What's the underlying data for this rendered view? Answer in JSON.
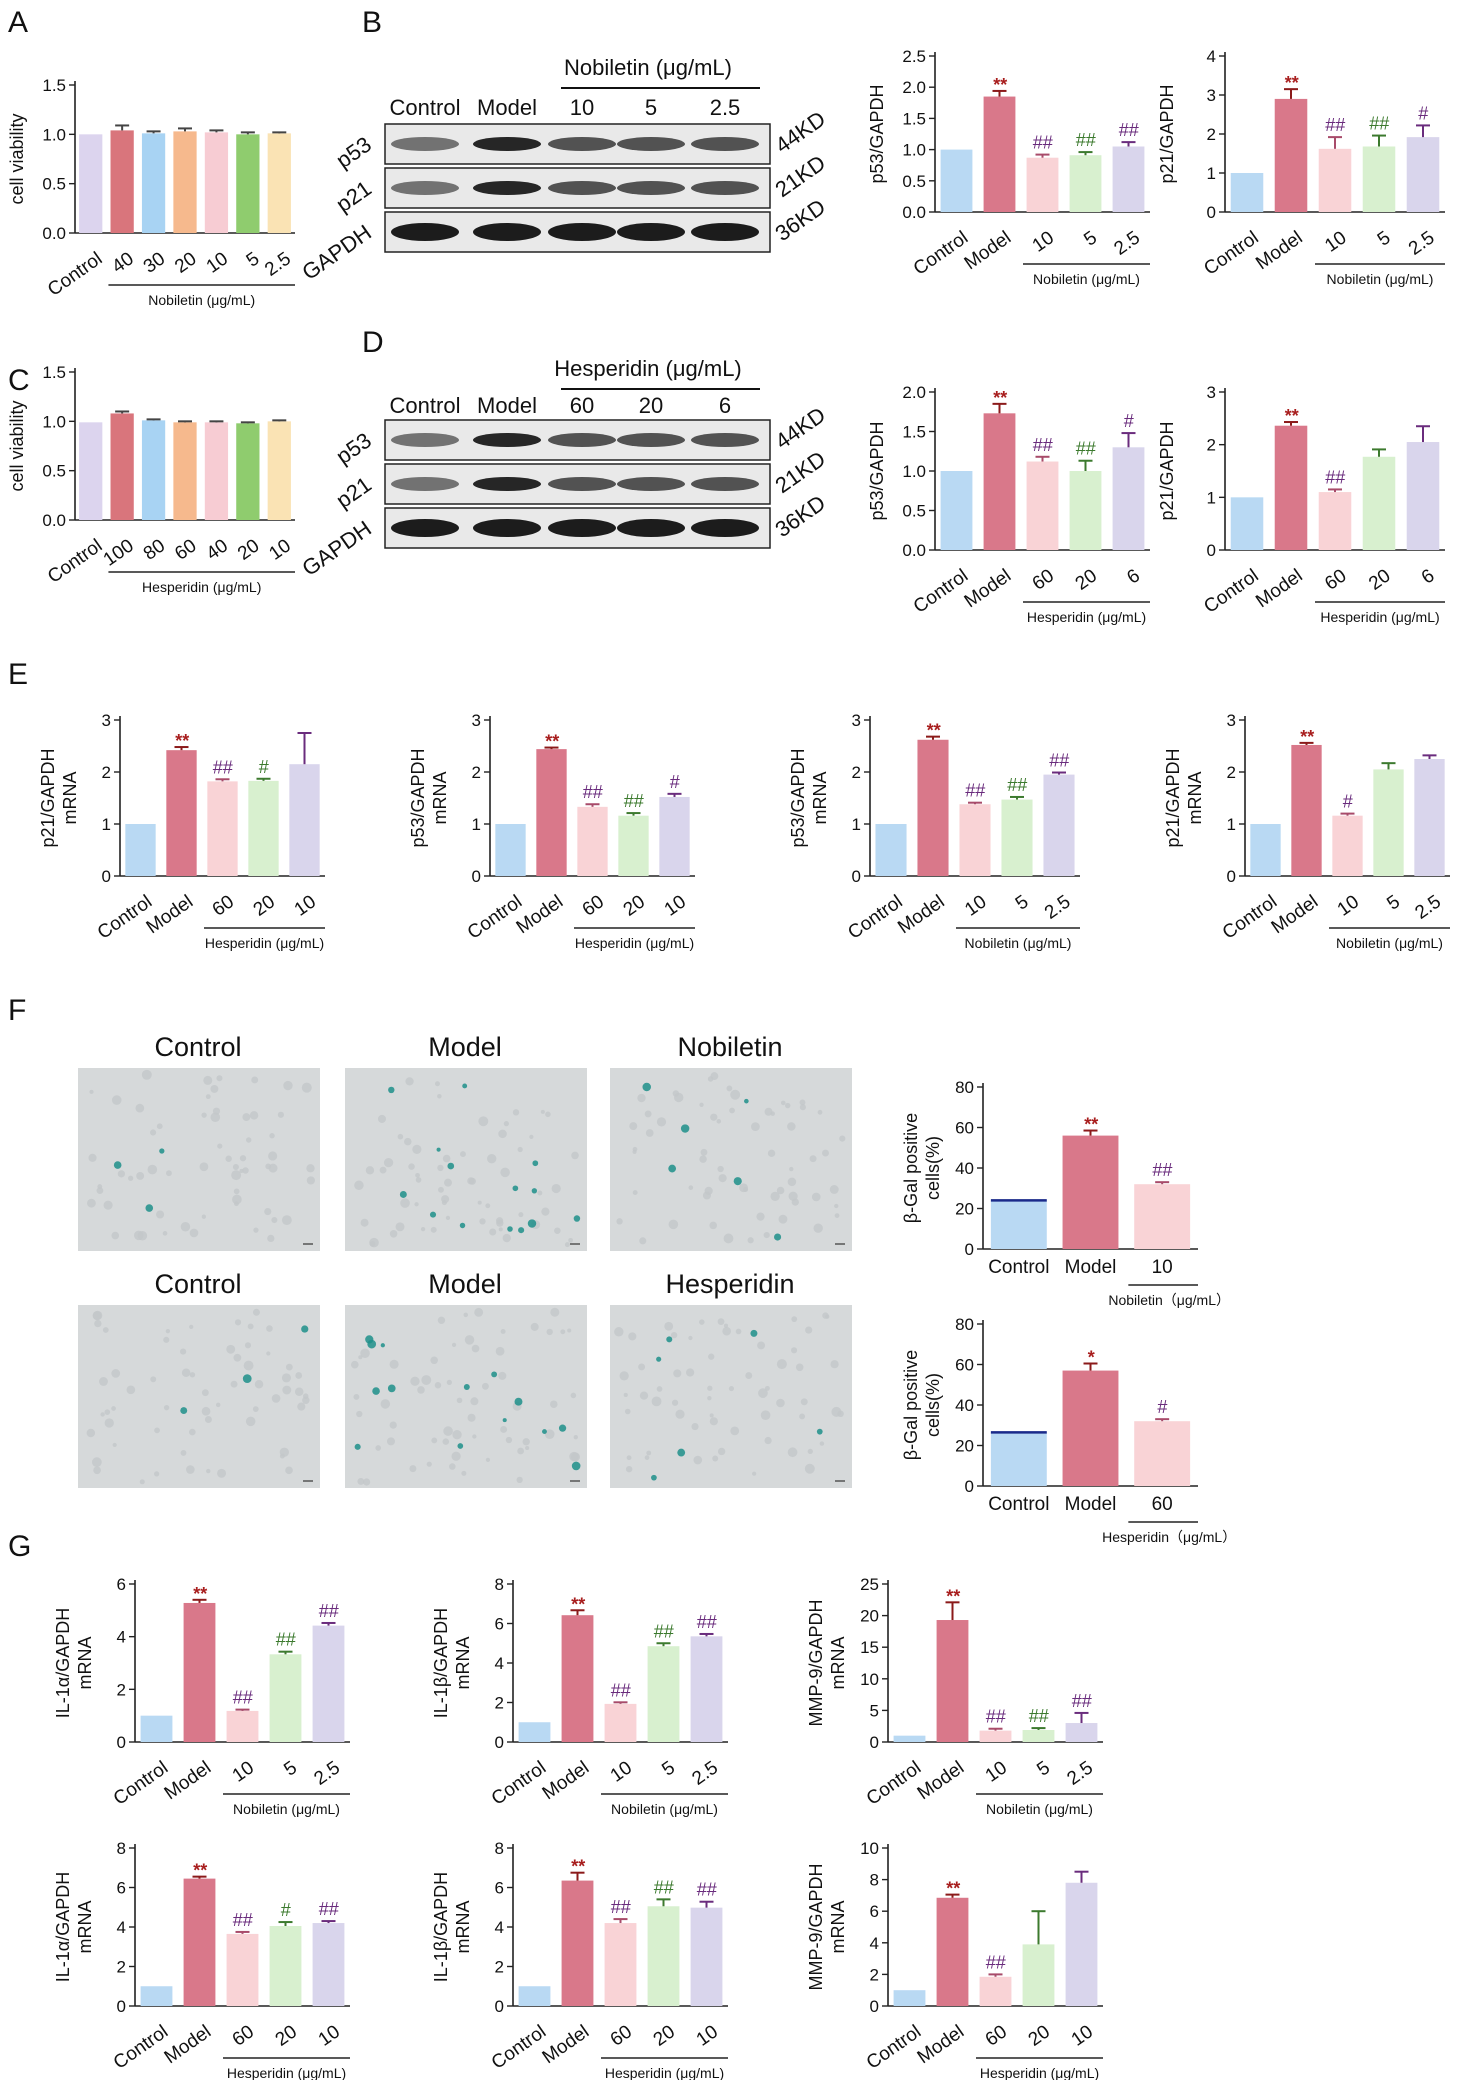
{
  "panels": {
    "A": "A",
    "B": "B",
    "C": "C",
    "D": "D",
    "E": "E",
    "F": "F",
    "G": "G"
  },
  "colors": {
    "control": "#b9d9f3",
    "model": "#d9788a",
    "t1": "#f9d3d6",
    "t2": "#d8f0cf",
    "t3": "#d9d5ec",
    "red": "#a81e1e",
    "purple": "#6a2c7d",
    "green": "#3c7a2e",
    "darkred": "#8b1a1a",
    "viability": [
      "#dcd4ee",
      "#d9757c",
      "#a8d3f3",
      "#f6b98d",
      "#f7ccd3",
      "#8fcc6e",
      "#fae3b4"
    ]
  },
  "western_blots": [
    {
      "panel": "B",
      "header": "Nobiletin (μg/mL)",
      "lanes": [
        "Control",
        "Model",
        "10",
        "5",
        "2.5"
      ],
      "rows": [
        {
          "protein": "p53",
          "size": "44KD"
        },
        {
          "protein": "p21",
          "size": "21KD"
        },
        {
          "protein": "GAPDH",
          "size": "36KD"
        }
      ]
    },
    {
      "panel": "D",
      "header": "Hesperidin (μg/mL)",
      "lanes": [
        "Control",
        "Model",
        "60",
        "20",
        "6"
      ],
      "rows": [
        {
          "protein": "p53",
          "size": "44KD"
        },
        {
          "protein": "p21",
          "size": "21KD"
        },
        {
          "protein": "GAPDH",
          "size": "36KD"
        }
      ]
    }
  ],
  "micrographs": {
    "row1": [
      "Control",
      "Model",
      "Nobiletin"
    ],
    "row2": [
      "Control",
      "Model",
      "Hesperidin"
    ]
  },
  "chart_data": [
    {
      "id": "A",
      "type": "bar",
      "ylabel": "cell viability",
      "ylim": [
        0,
        1.5
      ],
      "yticks": [
        "0.0",
        "0.5",
        "1.0",
        "1.5"
      ],
      "categories": [
        "Control",
        "40",
        "30",
        "20",
        "10",
        "5",
        "2.5"
      ],
      "values": [
        1.0,
        1.04,
        1.01,
        1.03,
        1.02,
        1.0,
        1.01
      ],
      "errors": [
        0,
        0.05,
        0.02,
        0.03,
        0.02,
        0.02,
        0.01
      ],
      "group_label": "Nobiletin (μg/mL)",
      "palette": "viability"
    },
    {
      "id": "B1",
      "type": "bar",
      "ylabel": "p53/GAPDH",
      "ylim": [
        0,
        2.5
      ],
      "yticks": [
        "0.0",
        "0.5",
        "1.0",
        "1.5",
        "2.0",
        "2.5"
      ],
      "categories": [
        "Control",
        "Model",
        "10",
        "5",
        "2.5"
      ],
      "values": [
        1.0,
        1.85,
        0.87,
        0.91,
        1.05
      ],
      "errors": [
        0,
        0.09,
        0.05,
        0.05,
        0.07
      ],
      "sig": [
        "",
        "**",
        "##",
        "##",
        "##"
      ],
      "group_label": "Nobiletin (μg/mL)"
    },
    {
      "id": "B2",
      "type": "bar",
      "ylabel": "p21/GAPDH",
      "ylim": [
        0,
        4
      ],
      "yticks": [
        "0",
        "1",
        "2",
        "3",
        "4"
      ],
      "categories": [
        "Control",
        "Model",
        "10",
        "5",
        "2.5"
      ],
      "values": [
        1.0,
        2.9,
        1.62,
        1.68,
        1.92
      ],
      "errors": [
        0,
        0.25,
        0.3,
        0.28,
        0.3
      ],
      "sig": [
        "",
        "**",
        "##",
        "##",
        "#"
      ],
      "group_label": "Nobiletin (μg/mL)"
    },
    {
      "id": "C",
      "type": "bar",
      "ylabel": "cell viability",
      "ylim": [
        0,
        1.5
      ],
      "yticks": [
        "0.0",
        "0.5",
        "1.0",
        "1.5"
      ],
      "categories": [
        "Control",
        "100",
        "80",
        "60",
        "40",
        "20",
        "10"
      ],
      "values": [
        0.99,
        1.08,
        1.01,
        0.99,
        0.99,
        0.98,
        1.0
      ],
      "errors": [
        0,
        0.02,
        0.01,
        0.01,
        0.01,
        0.01,
        0.01
      ],
      "group_label": "Hesperidin (μg/mL)",
      "palette": "viability"
    },
    {
      "id": "D1",
      "type": "bar",
      "ylabel": "p53/GAPDH",
      "ylim": [
        0,
        2.0
      ],
      "yticks": [
        "0.0",
        "0.5",
        "1.0",
        "1.5",
        "2.0"
      ],
      "categories": [
        "Control",
        "Model",
        "60",
        "20",
        "6"
      ],
      "values": [
        1.0,
        1.73,
        1.12,
        1.0,
        1.3
      ],
      "errors": [
        0,
        0.12,
        0.06,
        0.13,
        0.18
      ],
      "sig": [
        "",
        "**",
        "##",
        "##",
        "#"
      ],
      "group_label": "Hesperidin (μg/mL)"
    },
    {
      "id": "D2",
      "type": "bar",
      "ylabel": "p21/GAPDH",
      "ylim": [
        0,
        3
      ],
      "yticks": [
        "0",
        "1",
        "2",
        "3"
      ],
      "categories": [
        "Control",
        "Model",
        "60",
        "20",
        "6"
      ],
      "values": [
        1.0,
        2.36,
        1.1,
        1.77,
        2.05
      ],
      "errors": [
        0,
        0.07,
        0.05,
        0.14,
        0.3
      ],
      "sig": [
        "",
        "**",
        "##",
        "",
        ""
      ],
      "group_label": "Hesperidin (μg/mL)"
    },
    {
      "id": "E1",
      "type": "bar",
      "ylabel": "p21/GAPDH",
      "ylabel2": "mRNA",
      "ylim": [
        0,
        3
      ],
      "yticks": [
        "0",
        "1",
        "2",
        "3"
      ],
      "categories": [
        "Control",
        "Model",
        "60",
        "20",
        "10"
      ],
      "values": [
        1.0,
        2.42,
        1.82,
        1.83,
        2.15
      ],
      "errors": [
        0,
        0.06,
        0.04,
        0.04,
        0.6
      ],
      "sig": [
        "",
        "**",
        "##",
        "#",
        ""
      ],
      "group_label": "Hesperidin (μg/mL)"
    },
    {
      "id": "E2",
      "type": "bar",
      "ylabel": "p53/GAPDH",
      "ylabel2": "mRNA",
      "ylim": [
        0,
        3
      ],
      "yticks": [
        "0",
        "1",
        "2",
        "3"
      ],
      "categories": [
        "Control",
        "Model",
        "60",
        "20",
        "10"
      ],
      "values": [
        1.0,
        2.44,
        1.33,
        1.16,
        1.52
      ],
      "errors": [
        0,
        0.03,
        0.05,
        0.05,
        0.06
      ],
      "sig": [
        "",
        "**",
        "##",
        "##",
        "#"
      ],
      "group_label": "Hesperidin (μg/mL)"
    },
    {
      "id": "E3",
      "type": "bar",
      "ylabel": "p53/GAPDH",
      "ylabel2": "mRNA",
      "ylim": [
        0,
        3
      ],
      "yticks": [
        "0",
        "1",
        "2",
        "3"
      ],
      "categories": [
        "Control",
        "Model",
        "10",
        "5",
        "2.5"
      ],
      "values": [
        1.0,
        2.62,
        1.38,
        1.47,
        1.95
      ],
      "errors": [
        0,
        0.06,
        0.03,
        0.05,
        0.04
      ],
      "sig": [
        "",
        "**",
        "##",
        "##",
        "##"
      ],
      "group_label": "Nobiletin (μg/mL)"
    },
    {
      "id": "E4",
      "type": "bar",
      "ylabel": "p21/GAPDH",
      "ylabel2": "mRNA",
      "ylim": [
        0,
        3
      ],
      "yticks": [
        "0",
        "1",
        "2",
        "3"
      ],
      "categories": [
        "Control",
        "Model",
        "10",
        "5",
        "2.5"
      ],
      "values": [
        1.0,
        2.52,
        1.16,
        2.05,
        2.25
      ],
      "errors": [
        0,
        0.04,
        0.04,
        0.12,
        0.07
      ],
      "sig": [
        "",
        "**",
        "#",
        "",
        ""
      ],
      "group_label": "Nobiletin (μg/mL)"
    },
    {
      "id": "F1",
      "type": "bar",
      "ylabel": "β-Gal positive",
      "ylabel2": "cells(%)",
      "ylim": [
        0,
        80
      ],
      "yticks": [
        "0",
        "20",
        "40",
        "60",
        "80"
      ],
      "categories": [
        "Control",
        "Model",
        "10"
      ],
      "values": [
        24,
        56,
        32
      ],
      "errors": [
        0,
        2.5,
        1
      ],
      "sig": [
        "",
        "**",
        "##"
      ],
      "group_label": "Nobiletin（μg/mL）",
      "style": "wide"
    },
    {
      "id": "F2",
      "type": "bar",
      "ylabel": "β-Gal positive",
      "ylabel2": "cells(%)",
      "ylim": [
        0,
        80
      ],
      "yticks": [
        "0",
        "20",
        "40",
        "60",
        "80"
      ],
      "categories": [
        "Control",
        "Model",
        "60"
      ],
      "values": [
        26.5,
        57,
        32
      ],
      "errors": [
        0,
        3.5,
        1
      ],
      "sig": [
        "",
        "*",
        "#"
      ],
      "group_label": "Hesperidin（μg/mL）",
      "style": "wide"
    },
    {
      "id": "G1",
      "type": "bar",
      "ylabel": "IL-1α/GAPDH",
      "ylabel2": "mRNA",
      "ylim": [
        0,
        6
      ],
      "yticks": [
        "0",
        "2",
        "4",
        "6"
      ],
      "categories": [
        "Control",
        "Model",
        "10",
        "5",
        "2.5"
      ],
      "values": [
        1.0,
        5.28,
        1.18,
        3.33,
        4.42
      ],
      "errors": [
        0,
        0.12,
        0.05,
        0.1,
        0.1
      ],
      "sig": [
        "",
        "**",
        "##",
        "##",
        "##"
      ],
      "group_label": "Nobiletin (μg/mL)"
    },
    {
      "id": "G2",
      "type": "bar",
      "ylabel": "IL-1β/GAPDH",
      "ylabel2": "mRNA",
      "ylim": [
        0,
        8
      ],
      "yticks": [
        "0",
        "2",
        "4",
        "6",
        "8"
      ],
      "categories": [
        "Control",
        "Model",
        "10",
        "5",
        "2.5"
      ],
      "values": [
        1.0,
        6.42,
        1.93,
        4.85,
        5.35
      ],
      "errors": [
        0,
        0.25,
        0.08,
        0.15,
        0.12
      ],
      "sig": [
        "",
        "**",
        "##",
        "##",
        "##"
      ],
      "group_label": "Nobiletin (μg/mL)"
    },
    {
      "id": "G3",
      "type": "bar",
      "ylabel": "MMP-9/GAPDH",
      "ylabel2": "mRNA",
      "ylim": [
        0,
        25
      ],
      "yticks": [
        "0",
        "5",
        "10",
        "15",
        "20",
        "25"
      ],
      "categories": [
        "Control",
        "Model",
        "10",
        "5",
        "2.5"
      ],
      "values": [
        1.0,
        19.3,
        1.8,
        1.9,
        3.0
      ],
      "errors": [
        0,
        2.8,
        0.3,
        0.3,
        1.6
      ],
      "sig": [
        "",
        "**",
        "##",
        "##",
        "##"
      ],
      "group_label": "Nobiletin (μg/mL)"
    },
    {
      "id": "G4",
      "type": "bar",
      "ylabel": "IL-1α/GAPDH",
      "ylabel2": "mRNA",
      "ylim": [
        0,
        8
      ],
      "yticks": [
        "0",
        "2",
        "4",
        "6",
        "8"
      ],
      "categories": [
        "Control",
        "Model",
        "60",
        "20",
        "10"
      ],
      "values": [
        1.0,
        6.45,
        3.65,
        4.05,
        4.2
      ],
      "errors": [
        0,
        0.1,
        0.1,
        0.2,
        0.1
      ],
      "sig": [
        "",
        "**",
        "##",
        "#",
        "##"
      ],
      "group_label": "Hesperidin (μg/mL)"
    },
    {
      "id": "G5",
      "type": "bar",
      "ylabel": "IL-1β/GAPDH",
      "ylabel2": "mRNA",
      "ylim": [
        0,
        8
      ],
      "yticks": [
        "0",
        "2",
        "4",
        "6",
        "8"
      ],
      "categories": [
        "Control",
        "Model",
        "60",
        "20",
        "10"
      ],
      "values": [
        1.0,
        6.35,
        4.2,
        5.05,
        4.98
      ],
      "errors": [
        0,
        0.4,
        0.2,
        0.35,
        0.3
      ],
      "sig": [
        "",
        "**",
        "##",
        "##",
        "##"
      ],
      "group_label": "Hesperidin (μg/mL)"
    },
    {
      "id": "G6",
      "type": "bar",
      "ylabel": "MMP-9/GAPDH",
      "ylabel2": "mRNA",
      "ylim": [
        0,
        10
      ],
      "yticks": [
        "0",
        "2",
        "4",
        "6",
        "8",
        "10"
      ],
      "categories": [
        "Control",
        "Model",
        "60",
        "20",
        "10"
      ],
      "values": [
        1.0,
        6.85,
        1.85,
        3.9,
        7.8
      ],
      "errors": [
        0,
        0.2,
        0.15,
        2.1,
        0.7
      ],
      "sig": [
        "",
        "**",
        "##",
        "",
        ""
      ],
      "group_label": "Hesperidin (μg/mL)"
    }
  ]
}
